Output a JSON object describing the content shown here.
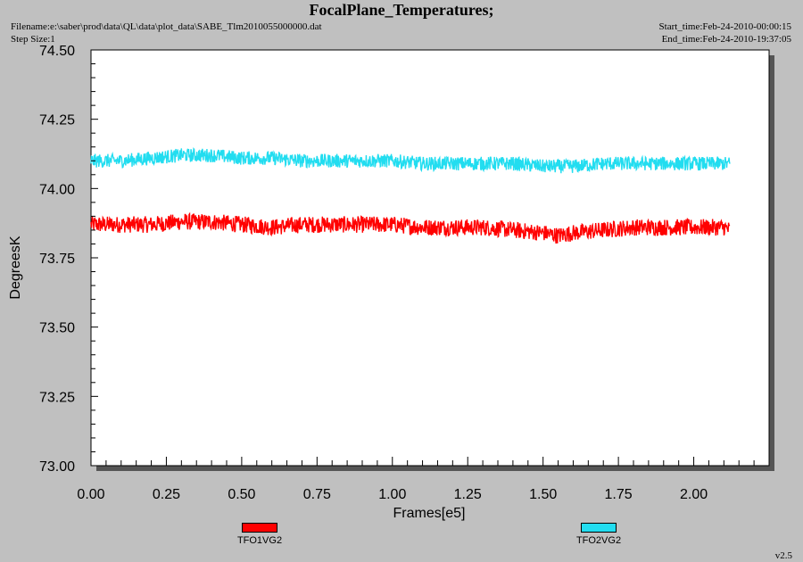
{
  "header": {
    "title": "FocalPlane_Temperatures;",
    "filename": "Filename:e:\\saber\\prod\\data\\QL\\data\\plot_data\\SABE_Tlm2010055000000.dat",
    "step_size": "Step Size:1",
    "start_time": "Start_time:Feb-24-2010-00:00:15",
    "end_time": "End_time:Feb-24-2010-19:37:05"
  },
  "version": "v2.5",
  "colors": {
    "background": "#c0c0c0",
    "plot_area": "#ffffff",
    "series1": "#ff0000",
    "series2": "#22ddf0"
  },
  "chart_data": {
    "type": "line",
    "title": "FocalPlane_Temperatures;",
    "xlabel": "Frames[e5]",
    "ylabel": "DegreesK",
    "xlim": [
      0.0,
      2.25
    ],
    "ylim": [
      73.0,
      74.5
    ],
    "xticks": [
      "0.00",
      "0.25",
      "0.50",
      "0.75",
      "1.00",
      "1.25",
      "1.50",
      "1.75",
      "2.00"
    ],
    "yticks": [
      "73.00",
      "73.25",
      "73.50",
      "73.75",
      "74.00",
      "74.25",
      "74.50"
    ],
    "grid": false,
    "legend_placement": "bottom",
    "series": [
      {
        "name": "TFO1VG2",
        "color": "#ff0000",
        "x": [
          0.0,
          0.1,
          0.2,
          0.3,
          0.4,
          0.5,
          0.6,
          0.7,
          0.8,
          0.9,
          1.0,
          1.1,
          1.2,
          1.3,
          1.4,
          1.5,
          1.55,
          1.6,
          1.7,
          1.8,
          1.9,
          2.0,
          2.1,
          2.12
        ],
        "values": [
          73.87,
          73.87,
          73.87,
          73.88,
          73.88,
          73.87,
          73.86,
          73.87,
          73.87,
          73.87,
          73.87,
          73.86,
          73.86,
          73.86,
          73.85,
          73.84,
          73.83,
          73.84,
          73.85,
          73.86,
          73.86,
          73.86,
          73.86,
          73.85
        ],
        "noise": 0.03
      },
      {
        "name": "TFO2VG2",
        "color": "#22ddf0",
        "x": [
          0.0,
          0.1,
          0.2,
          0.3,
          0.4,
          0.5,
          0.6,
          0.7,
          0.8,
          0.9,
          1.0,
          1.1,
          1.2,
          1.3,
          1.4,
          1.5,
          1.6,
          1.7,
          1.8,
          1.9,
          2.0,
          2.1,
          2.12
        ],
        "values": [
          74.1,
          74.1,
          74.11,
          74.12,
          74.12,
          74.11,
          74.11,
          74.1,
          74.1,
          74.1,
          74.1,
          74.09,
          74.09,
          74.09,
          74.09,
          74.08,
          74.08,
          74.09,
          74.09,
          74.09,
          74.09,
          74.09,
          74.09
        ],
        "noise": 0.025
      }
    ]
  }
}
